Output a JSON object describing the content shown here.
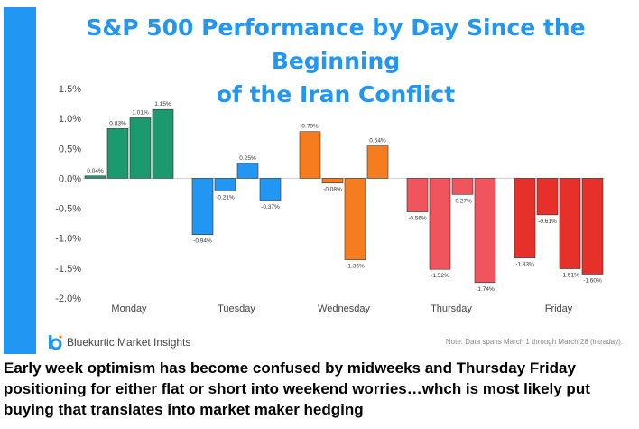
{
  "chart_data": {
    "type": "bar",
    "title_line1": "S&P 500 Performance by Day Since the Beginning",
    "title_line2": "of the Iran Conflict",
    "ylim": [
      -2.0,
      1.5
    ],
    "yticks": [
      1.5,
      1.0,
      0.5,
      0.0,
      -0.5,
      -1.0,
      -1.5,
      -2.0
    ],
    "ytick_labels": [
      "1.5%",
      "1.0%",
      "0.5%",
      "0.0%",
      "-0.5%",
      "-1.0%",
      "-1.5%",
      "-2.0%"
    ],
    "groups": [
      {
        "day": "Monday",
        "color": "#1a9a6e",
        "values": [
          0.04,
          0.83,
          1.01,
          1.15
        ],
        "labels": [
          "0.04%",
          "0.83%",
          "1.01%",
          "1.15%"
        ]
      },
      {
        "day": "Tuesday",
        "color": "#2196F3",
        "values": [
          -0.94,
          -0.21,
          0.25,
          -0.37
        ],
        "labels": [
          "-0.94%",
          "-0.21%",
          "0.25%",
          "-0.37%"
        ]
      },
      {
        "day": "Wednesday",
        "color": "#F57C1F",
        "values": [
          0.78,
          -0.08,
          -1.36,
          0.54
        ],
        "labels": [
          "0.78%",
          "-0.08%",
          "-1.36%",
          "0.54%"
        ]
      },
      {
        "day": "Thursday",
        "color": "#F0555D",
        "values": [
          -0.56,
          -1.52,
          -0.27,
          -1.74
        ],
        "labels": [
          "-0.56%",
          "-1.52%",
          "-0.27%",
          "-1.74%"
        ]
      },
      {
        "day": "Friday",
        "color": "#E8302B",
        "values": [
          -1.33,
          -0.61,
          -1.51,
          -1.6
        ],
        "labels": [
          "-1.33%",
          "-0.61%",
          "-1.51%",
          "-1.60%"
        ]
      }
    ]
  },
  "brand": {
    "name": "Bluekurtic Market Insights",
    "color": "#2196F3"
  },
  "note": "Note: Data spans March 1 through March 28 (intraday).",
  "caption": "Early week optimism has become confused by midweeks and Thursday Friday positioning for either flat or short into weekend worries…whch is most likely put buying that translates into market maker hedging"
}
